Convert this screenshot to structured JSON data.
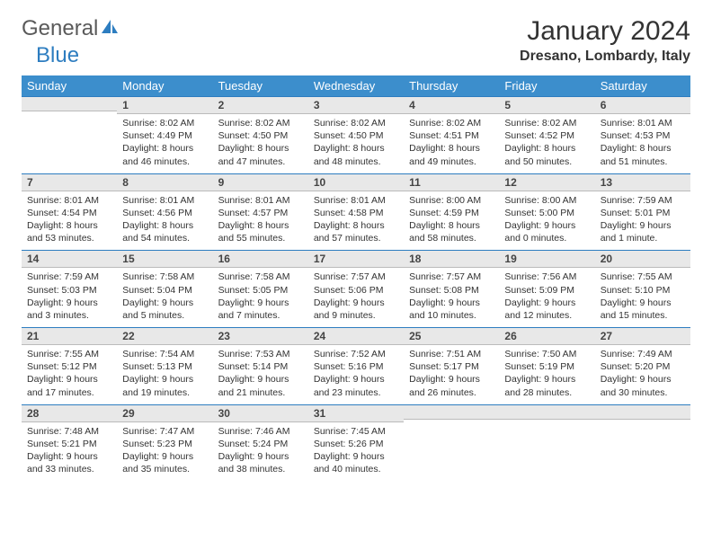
{
  "logo": {
    "general": "General",
    "blue": "Blue"
  },
  "title": "January 2024",
  "location": "Dresano, Lombardy, Italy",
  "colors": {
    "header_bg": "#3c8ecc",
    "header_text": "#ffffff",
    "daynum_bg": "#e8e8e8",
    "daynum_border_top": "#2d7dc0",
    "body_text": "#333333",
    "logo_general": "#5a5a5a",
    "logo_blue": "#2d7dc0"
  },
  "weekdays": [
    "Sunday",
    "Monday",
    "Tuesday",
    "Wednesday",
    "Thursday",
    "Friday",
    "Saturday"
  ],
  "weeks": [
    [
      {
        "num": "",
        "lines": []
      },
      {
        "num": "1",
        "lines": [
          "Sunrise: 8:02 AM",
          "Sunset: 4:49 PM",
          "Daylight: 8 hours",
          "and 46 minutes."
        ]
      },
      {
        "num": "2",
        "lines": [
          "Sunrise: 8:02 AM",
          "Sunset: 4:50 PM",
          "Daylight: 8 hours",
          "and 47 minutes."
        ]
      },
      {
        "num": "3",
        "lines": [
          "Sunrise: 8:02 AM",
          "Sunset: 4:50 PM",
          "Daylight: 8 hours",
          "and 48 minutes."
        ]
      },
      {
        "num": "4",
        "lines": [
          "Sunrise: 8:02 AM",
          "Sunset: 4:51 PM",
          "Daylight: 8 hours",
          "and 49 minutes."
        ]
      },
      {
        "num": "5",
        "lines": [
          "Sunrise: 8:02 AM",
          "Sunset: 4:52 PM",
          "Daylight: 8 hours",
          "and 50 minutes."
        ]
      },
      {
        "num": "6",
        "lines": [
          "Sunrise: 8:01 AM",
          "Sunset: 4:53 PM",
          "Daylight: 8 hours",
          "and 51 minutes."
        ]
      }
    ],
    [
      {
        "num": "7",
        "lines": [
          "Sunrise: 8:01 AM",
          "Sunset: 4:54 PM",
          "Daylight: 8 hours",
          "and 53 minutes."
        ]
      },
      {
        "num": "8",
        "lines": [
          "Sunrise: 8:01 AM",
          "Sunset: 4:56 PM",
          "Daylight: 8 hours",
          "and 54 minutes."
        ]
      },
      {
        "num": "9",
        "lines": [
          "Sunrise: 8:01 AM",
          "Sunset: 4:57 PM",
          "Daylight: 8 hours",
          "and 55 minutes."
        ]
      },
      {
        "num": "10",
        "lines": [
          "Sunrise: 8:01 AM",
          "Sunset: 4:58 PM",
          "Daylight: 8 hours",
          "and 57 minutes."
        ]
      },
      {
        "num": "11",
        "lines": [
          "Sunrise: 8:00 AM",
          "Sunset: 4:59 PM",
          "Daylight: 8 hours",
          "and 58 minutes."
        ]
      },
      {
        "num": "12",
        "lines": [
          "Sunrise: 8:00 AM",
          "Sunset: 5:00 PM",
          "Daylight: 9 hours",
          "and 0 minutes."
        ]
      },
      {
        "num": "13",
        "lines": [
          "Sunrise: 7:59 AM",
          "Sunset: 5:01 PM",
          "Daylight: 9 hours",
          "and 1 minute."
        ]
      }
    ],
    [
      {
        "num": "14",
        "lines": [
          "Sunrise: 7:59 AM",
          "Sunset: 5:03 PM",
          "Daylight: 9 hours",
          "and 3 minutes."
        ]
      },
      {
        "num": "15",
        "lines": [
          "Sunrise: 7:58 AM",
          "Sunset: 5:04 PM",
          "Daylight: 9 hours",
          "and 5 minutes."
        ]
      },
      {
        "num": "16",
        "lines": [
          "Sunrise: 7:58 AM",
          "Sunset: 5:05 PM",
          "Daylight: 9 hours",
          "and 7 minutes."
        ]
      },
      {
        "num": "17",
        "lines": [
          "Sunrise: 7:57 AM",
          "Sunset: 5:06 PM",
          "Daylight: 9 hours",
          "and 9 minutes."
        ]
      },
      {
        "num": "18",
        "lines": [
          "Sunrise: 7:57 AM",
          "Sunset: 5:08 PM",
          "Daylight: 9 hours",
          "and 10 minutes."
        ]
      },
      {
        "num": "19",
        "lines": [
          "Sunrise: 7:56 AM",
          "Sunset: 5:09 PM",
          "Daylight: 9 hours",
          "and 12 minutes."
        ]
      },
      {
        "num": "20",
        "lines": [
          "Sunrise: 7:55 AM",
          "Sunset: 5:10 PM",
          "Daylight: 9 hours",
          "and 15 minutes."
        ]
      }
    ],
    [
      {
        "num": "21",
        "lines": [
          "Sunrise: 7:55 AM",
          "Sunset: 5:12 PM",
          "Daylight: 9 hours",
          "and 17 minutes."
        ]
      },
      {
        "num": "22",
        "lines": [
          "Sunrise: 7:54 AM",
          "Sunset: 5:13 PM",
          "Daylight: 9 hours",
          "and 19 minutes."
        ]
      },
      {
        "num": "23",
        "lines": [
          "Sunrise: 7:53 AM",
          "Sunset: 5:14 PM",
          "Daylight: 9 hours",
          "and 21 minutes."
        ]
      },
      {
        "num": "24",
        "lines": [
          "Sunrise: 7:52 AM",
          "Sunset: 5:16 PM",
          "Daylight: 9 hours",
          "and 23 minutes."
        ]
      },
      {
        "num": "25",
        "lines": [
          "Sunrise: 7:51 AM",
          "Sunset: 5:17 PM",
          "Daylight: 9 hours",
          "and 26 minutes."
        ]
      },
      {
        "num": "26",
        "lines": [
          "Sunrise: 7:50 AM",
          "Sunset: 5:19 PM",
          "Daylight: 9 hours",
          "and 28 minutes."
        ]
      },
      {
        "num": "27",
        "lines": [
          "Sunrise: 7:49 AM",
          "Sunset: 5:20 PM",
          "Daylight: 9 hours",
          "and 30 minutes."
        ]
      }
    ],
    [
      {
        "num": "28",
        "lines": [
          "Sunrise: 7:48 AM",
          "Sunset: 5:21 PM",
          "Daylight: 9 hours",
          "and 33 minutes."
        ]
      },
      {
        "num": "29",
        "lines": [
          "Sunrise: 7:47 AM",
          "Sunset: 5:23 PM",
          "Daylight: 9 hours",
          "and 35 minutes."
        ]
      },
      {
        "num": "30",
        "lines": [
          "Sunrise: 7:46 AM",
          "Sunset: 5:24 PM",
          "Daylight: 9 hours",
          "and 38 minutes."
        ]
      },
      {
        "num": "31",
        "lines": [
          "Sunrise: 7:45 AM",
          "Sunset: 5:26 PM",
          "Daylight: 9 hours",
          "and 40 minutes."
        ]
      },
      {
        "num": "",
        "lines": []
      },
      {
        "num": "",
        "lines": []
      },
      {
        "num": "",
        "lines": []
      }
    ]
  ]
}
